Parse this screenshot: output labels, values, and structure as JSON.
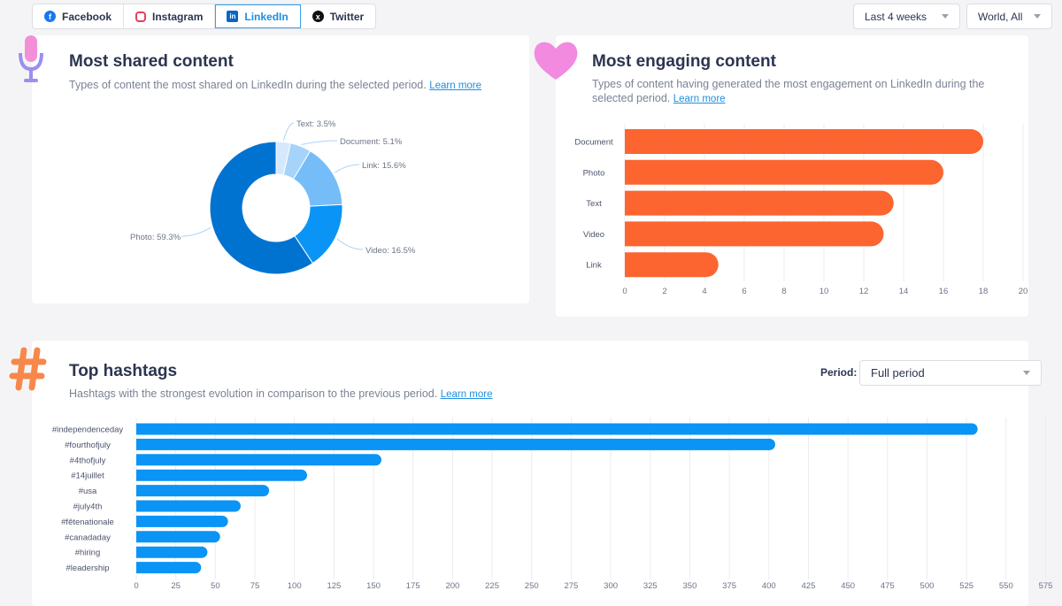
{
  "tabs": [
    {
      "label": "Facebook",
      "icon": "facebook-icon",
      "active": false
    },
    {
      "label": "Instagram",
      "icon": "instagram-icon",
      "active": false
    },
    {
      "label": "LinkedIn",
      "icon": "linkedin-icon",
      "active": true
    },
    {
      "label": "Twitter",
      "icon": "x-twitter-icon",
      "active": false
    }
  ],
  "filters": {
    "date": "Last 4 weeks",
    "region": "World, All"
  },
  "shared": {
    "title": "Most shared content",
    "subtitle": "Types of content the most shared on LinkedIn during the selected period.",
    "learn_more": "Learn more"
  },
  "engaging": {
    "title": "Most engaging content",
    "subtitle": "Types of content having generated the most engagement on LinkedIn during the selected period.",
    "learn_more": "Learn more"
  },
  "hashtags": {
    "title": "Top hashtags",
    "subtitle": "Hashtags with the strongest evolution in comparison to the previous period.",
    "learn_more": "Learn more",
    "period_label": "Period:",
    "period_value": "Full period"
  },
  "chart_data": [
    {
      "type": "pie",
      "donut": true,
      "categories": [
        "Text",
        "Document",
        "Link",
        "Video",
        "Photo"
      ],
      "values": [
        3.5,
        5.1,
        15.6,
        16.5,
        59.3
      ],
      "labels": [
        "Text: 3.5%",
        "Document: 5.1%",
        "Link: 15.6%",
        "Video: 16.5%",
        "Photo: 59.3%"
      ],
      "colors": [
        "#d4e9fd",
        "#a6d3fa",
        "#74bdf9",
        "#0a94f5",
        "#0073d1"
      ]
    },
    {
      "type": "bar",
      "orientation": "horizontal",
      "categories": [
        "Document",
        "Photo",
        "Text",
        "Video",
        "Link"
      ],
      "values": [
        18,
        16,
        13.5,
        13,
        4.7
      ],
      "xlim": [
        0,
        20
      ],
      "xticks": [
        "0",
        "2",
        "4",
        "6",
        "8",
        "10",
        "12",
        "14",
        "16",
        "18",
        "20"
      ],
      "color": "#fc6530",
      "grid": true
    },
    {
      "type": "bar",
      "orientation": "horizontal",
      "categories": [
        "#independenceday",
        "#fourthofjuly",
        "#4thofjuly",
        "#14juillet",
        "#usa",
        "#july4th",
        "#fêtenationale",
        "#canadaday",
        "#hiring",
        "#leadership"
      ],
      "values": [
        532,
        404,
        155,
        108,
        84,
        66,
        58,
        53,
        45,
        41
      ],
      "xlim": [
        0,
        575
      ],
      "xticks": [
        "0",
        "25",
        "50",
        "75",
        "100",
        "125",
        "150",
        "175",
        "200",
        "225",
        "250",
        "275",
        "300",
        "325",
        "350",
        "375",
        "400",
        "425",
        "450",
        "475",
        "500",
        "525",
        "550",
        "575"
      ],
      "color": "#0a94f5",
      "grid": true
    }
  ]
}
